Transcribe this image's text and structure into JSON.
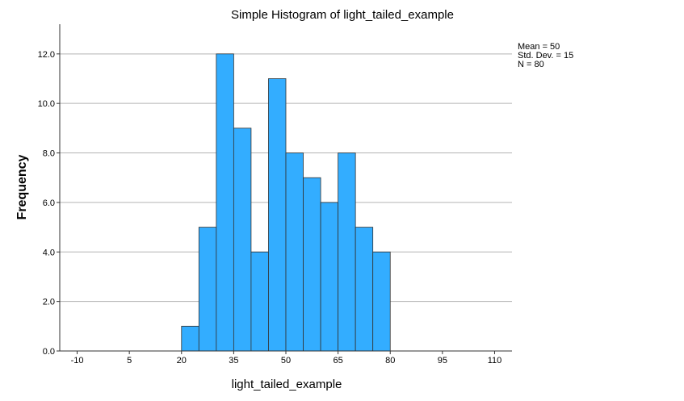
{
  "chart_data": {
    "type": "bar",
    "title": "Simple Histogram of light_tailed_example",
    "xlabel": "light_tailed_example",
    "ylabel": "Frequency",
    "xlim": [
      -15,
      115
    ],
    "ylim": [
      0,
      13.2
    ],
    "x_ticks": [
      -10,
      5,
      20,
      35,
      50,
      65,
      80,
      95,
      110
    ],
    "y_ticks": [
      0,
      2,
      4,
      6,
      8,
      10,
      12
    ],
    "y_tick_labels": [
      "0.0",
      "2.0",
      "4.0",
      "6.0",
      "8.0",
      "10.0",
      "12.0"
    ],
    "bin_width": 5,
    "bins": [
      {
        "start": 20,
        "end": 25,
        "value": 1
      },
      {
        "start": 25,
        "end": 30,
        "value": 5
      },
      {
        "start": 30,
        "end": 35,
        "value": 12
      },
      {
        "start": 35,
        "end": 40,
        "value": 9
      },
      {
        "start": 40,
        "end": 45,
        "value": 4
      },
      {
        "start": 45,
        "end": 50,
        "value": 11
      },
      {
        "start": 50,
        "end": 55,
        "value": 8
      },
      {
        "start": 55,
        "end": 60,
        "value": 7
      },
      {
        "start": 60,
        "end": 65,
        "value": 6
      },
      {
        "start": 65,
        "end": 70,
        "value": 8
      },
      {
        "start": 70,
        "end": 75,
        "value": 5
      },
      {
        "start": 75,
        "end": 80,
        "value": 4
      }
    ],
    "bar_color": "#33adff",
    "bar_edge_color": "#333333",
    "grid": true,
    "gridline_color": "#b3b3b3",
    "stats": {
      "mean": "Mean = 50",
      "std": "Std. Dev. = 15",
      "n": "N = 80"
    },
    "stats_placement": "top-right"
  }
}
